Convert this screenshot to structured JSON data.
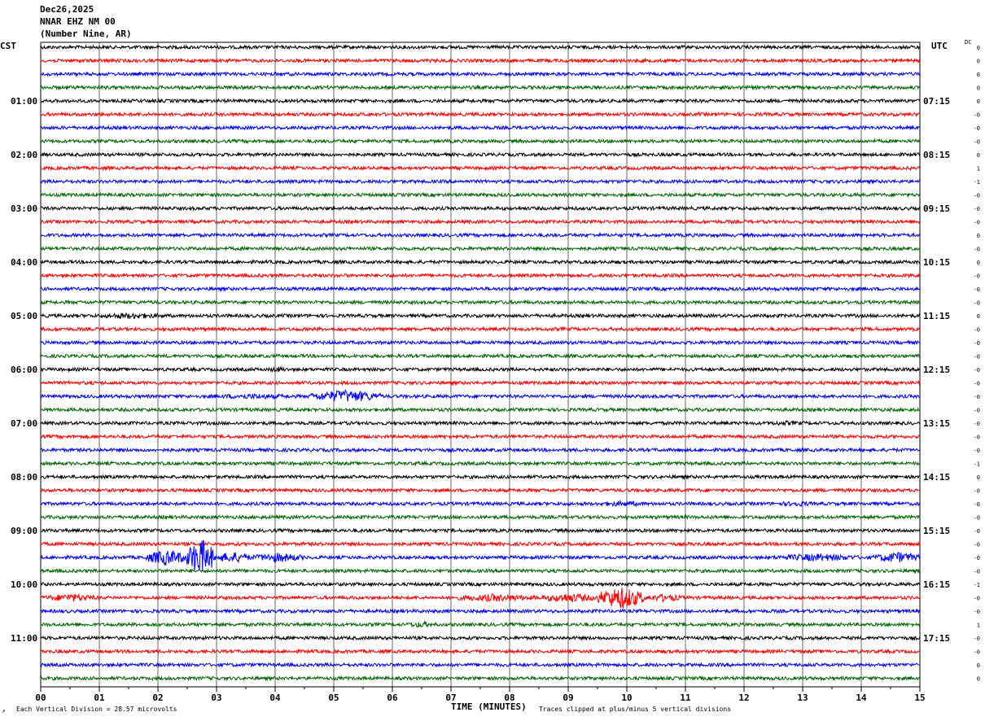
{
  "header": {
    "date": "Dec26,2025",
    "station": "NNAR EHZ NM 00",
    "location": "(Number Nine, AR)"
  },
  "left_tz": "CST",
  "right_tz": "UTC",
  "dc_label": "DC",
  "footer": {
    "division": "Each Vertical Division =   28.57 microvolts",
    "clip": "Traces clipped at plus/minus 5 vertical divisions",
    "corner": "↗"
  },
  "chart_data": {
    "type": "line",
    "title": "",
    "xlabel": "TIME (MINUTES)",
    "ylabel": "",
    "xlim": [
      0,
      15
    ],
    "x_ticks": [
      "00",
      "01",
      "02",
      "03",
      "04",
      "05",
      "06",
      "07",
      "08",
      "09",
      "10",
      "11",
      "12",
      "13",
      "14",
      "15"
    ],
    "rows_per_hour": 4,
    "trace_count": 48,
    "trace_colors": [
      "#000000",
      "#ff0000",
      "#0000ff",
      "#006400"
    ],
    "left_time_labels": [
      "01:00",
      "02:00",
      "03:00",
      "04:00",
      "05:00",
      "06:00",
      "07:00",
      "08:00",
      "09:00",
      "10:00",
      "11:00"
    ],
    "right_time_labels": [
      "07:15",
      "08:15",
      "09:15",
      "10:15",
      "11:15",
      "12:15",
      "13:15",
      "14:15",
      "15:15",
      "16:15",
      "17:15"
    ],
    "dc_offsets": [
      "0",
      "0",
      "0",
      "0",
      "0",
      "-0",
      "-0",
      "-0",
      "0",
      "1",
      "-1",
      "-0",
      "-0",
      "-0",
      "0",
      "-0",
      "0",
      "-0",
      "-0",
      "-0",
      "0",
      "-0",
      "-0",
      "-0",
      "-0",
      "-0",
      "-0",
      "-0",
      "-0",
      "-0",
      "-0",
      "-1",
      "0",
      "-0",
      "-0",
      "-0",
      "-0",
      "-0",
      "-0",
      "-0",
      "-1",
      "-0",
      "-0",
      "1",
      "-0",
      "-0",
      "0",
      "0"
    ],
    "noise_amplitude": 2.0,
    "events": [
      {
        "trace": 20,
        "start": 0.9,
        "end": 2.2,
        "amplitude": 4
      },
      {
        "trace": 28,
        "start": 12.1,
        "end": 13.3,
        "amplitude": 3
      },
      {
        "trace": 24,
        "start": 3.8,
        "end": 4.3,
        "amplitude": 3.5
      },
      {
        "trace": 26,
        "start": 2.6,
        "end": 4.6,
        "amplitude": 3.5
      },
      {
        "trace": 26,
        "start": 4.6,
        "end": 5.8,
        "amplitude": 8
      },
      {
        "trace": 34,
        "start": 9.3,
        "end": 10.5,
        "amplitude": 3.5
      },
      {
        "trace": 34,
        "start": 12.5,
        "end": 13.3,
        "amplitude": 3.5
      },
      {
        "trace": 38,
        "start": 1.8,
        "end": 2.5,
        "amplitude": 10
      },
      {
        "trace": 38,
        "start": 2.5,
        "end": 2.95,
        "amplitude": 24
      },
      {
        "trace": 38,
        "start": 2.95,
        "end": 3.6,
        "amplitude": 7
      },
      {
        "trace": 38,
        "start": 3.6,
        "end": 4.5,
        "amplitude": 6
      },
      {
        "trace": 38,
        "start": 12.5,
        "end": 14.0,
        "amplitude": 5
      },
      {
        "trace": 38,
        "start": 14.2,
        "end": 15.0,
        "amplitude": 7
      },
      {
        "trace": 41,
        "start": 0.0,
        "end": 1.0,
        "amplitude": 5
      },
      {
        "trace": 41,
        "start": 7.0,
        "end": 8.5,
        "amplitude": 5
      },
      {
        "trace": 41,
        "start": 8.5,
        "end": 9.5,
        "amplitude": 6
      },
      {
        "trace": 41,
        "start": 9.5,
        "end": 10.3,
        "amplitude": 14
      },
      {
        "trace": 41,
        "start": 10.3,
        "end": 11.0,
        "amplitude": 5
      },
      {
        "trace": 43,
        "start": 6.2,
        "end": 6.8,
        "amplitude": 4
      }
    ]
  }
}
